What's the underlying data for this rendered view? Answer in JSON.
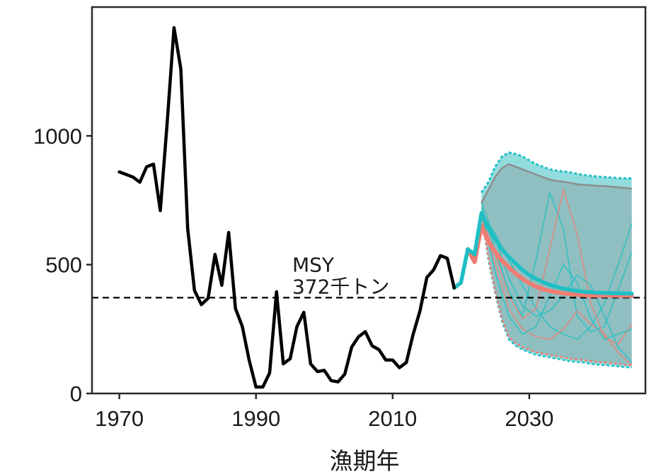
{
  "chart_data": {
    "type": "line",
    "title": "",
    "xlabel": "漁期年",
    "ylabel": "",
    "xlim": [
      1966,
      2047
    ],
    "ylim": [
      0,
      1500
    ],
    "xticks": [
      1970,
      1990,
      2010,
      2030
    ],
    "yticks": [
      0,
      500,
      1000
    ],
    "grid": false,
    "legend": "none",
    "colors": {
      "history": "#000000",
      "red_scenario": "#f07c74",
      "teal_scenario": "#1fbfc4",
      "band_fill": "#39c0c2",
      "band_fill_inner": "#8a8a8a",
      "msy_line": "#000000"
    },
    "annotations": [
      {
        "lines": [
          "MSY",
          "372千トン"
        ],
        "x": 1995,
        "y": 440
      }
    ],
    "reference_line": {
      "y": 372,
      "style": "dashed"
    },
    "series": [
      {
        "role": "history",
        "x": [
          1970,
          1971,
          1972,
          1973,
          1974,
          1975,
          1976,
          1977,
          1978,
          1979,
          1980,
          1981,
          1982,
          1983,
          1984,
          1985,
          1986,
          1987,
          1988,
          1989,
          1990,
          1991,
          1992,
          1993,
          1994,
          1995,
          1996,
          1997,
          1998,
          1999,
          2000,
          2001,
          2002,
          2003,
          2004,
          2005,
          2006,
          2007,
          2008,
          2009,
          2010,
          2011,
          2012,
          2013,
          2014,
          2015,
          2016,
          2017,
          2018,
          2019
        ],
        "values": [
          860,
          850,
          840,
          820,
          880,
          890,
          710,
          1050,
          1420,
          1260,
          640,
          400,
          345,
          370,
          540,
          420,
          625,
          330,
          260,
          130,
          25,
          25,
          80,
          395,
          115,
          135,
          260,
          315,
          115,
          85,
          90,
          50,
          45,
          75,
          180,
          220,
          240,
          185,
          170,
          130,
          130,
          100,
          120,
          230,
          320,
          450,
          480,
          535,
          525,
          410
        ]
      },
      {
        "role": "teal_median",
        "x": [
          2019,
          2020,
          2021,
          2022,
          2023,
          2024,
          2025,
          2026,
          2027,
          2028,
          2029,
          2030,
          2031,
          2032,
          2033,
          2034,
          2035,
          2036,
          2037,
          2038,
          2039,
          2040,
          2041,
          2042,
          2043,
          2044,
          2045
        ],
        "values": [
          410,
          430,
          560,
          540,
          700,
          640,
          600,
          560,
          530,
          505,
          480,
          460,
          445,
          432,
          422,
          414,
          407,
          402,
          398,
          395,
          393,
          391,
          390,
          389,
          389,
          388,
          388
        ]
      },
      {
        "role": "red_median",
        "x": [
          2021,
          2022,
          2023,
          2024,
          2025,
          2026,
          2027,
          2028,
          2029,
          2030,
          2031,
          2032,
          2033,
          2034,
          2035,
          2036,
          2037,
          2038,
          2039,
          2040,
          2041,
          2042,
          2043,
          2044,
          2045
        ],
        "values": [
          560,
          510,
          650,
          590,
          550,
          515,
          490,
          465,
          445,
          428,
          415,
          405,
          398,
          393,
          389,
          386,
          384,
          382,
          381,
          380,
          380,
          380,
          380,
          380,
          380
        ]
      }
    ],
    "bands": [
      {
        "role": "teal_band",
        "x": [
          2023,
          2024,
          2025,
          2026,
          2027,
          2028,
          2029,
          2030,
          2031,
          2032,
          2033,
          2034,
          2035,
          2036,
          2037,
          2038,
          2039,
          2040,
          2041,
          2042,
          2043,
          2044,
          2045
        ],
        "upper": [
          780,
          820,
          880,
          920,
          935,
          930,
          920,
          905,
          890,
          880,
          870,
          865,
          862,
          858,
          852,
          848,
          845,
          842,
          840,
          838,
          836,
          835,
          835
        ],
        "lower": [
          700,
          520,
          390,
          280,
          210,
          185,
          170,
          160,
          150,
          145,
          140,
          135,
          130,
          125,
          122,
          120,
          115,
          112,
          110,
          108,
          105,
          102,
          100
        ]
      },
      {
        "role": "grey_band",
        "x": [
          2023,
          2024,
          2025,
          2026,
          2027,
          2028,
          2029,
          2030,
          2031,
          2032,
          2033,
          2034,
          2035,
          2036,
          2037,
          2038,
          2039,
          2040,
          2041,
          2042,
          2043,
          2044,
          2045
        ],
        "upper": [
          740,
          790,
          840,
          875,
          890,
          880,
          870,
          860,
          850,
          840,
          830,
          825,
          822,
          818,
          812,
          810,
          808,
          806,
          805,
          803,
          800,
          798,
          795
        ],
        "lower": [
          700,
          530,
          400,
          290,
          220,
          195,
          180,
          170,
          160,
          155,
          150,
          145,
          140,
          135,
          132,
          130,
          125,
          122,
          120,
          118,
          115,
          112,
          110
        ]
      }
    ],
    "trajectories": [
      {
        "color": "teal",
        "x": [
          2023,
          2025,
          2027,
          2029,
          2031,
          2033,
          2035,
          2037,
          2039,
          2041,
          2043,
          2045
        ],
        "values": [
          720,
          560,
          400,
          300,
          520,
          780,
          640,
          300,
          240,
          260,
          400,
          550
        ]
      },
      {
        "color": "teal",
        "x": [
          2023,
          2025,
          2027,
          2029,
          2031,
          2033,
          2035,
          2037,
          2039,
          2041,
          2043,
          2045
        ],
        "values": [
          700,
          620,
          520,
          420,
          330,
          260,
          230,
          210,
          260,
          350,
          500,
          660
        ]
      },
      {
        "color": "red",
        "x": [
          2023,
          2025,
          2027,
          2029,
          2031,
          2033,
          2035,
          2037,
          2039,
          2041,
          2043,
          2045
        ],
        "values": [
          690,
          540,
          380,
          290,
          330,
          560,
          790,
          620,
          350,
          220,
          190,
          270
        ]
      },
      {
        "color": "teal",
        "x": [
          2023,
          2025,
          2027,
          2029,
          2031,
          2033,
          2035,
          2037,
          2039,
          2041,
          2043,
          2045
        ],
        "values": [
          740,
          600,
          450,
          340,
          300,
          320,
          380,
          460,
          420,
          300,
          180,
          120
        ]
      },
      {
        "color": "red",
        "x": [
          2023,
          2025,
          2027,
          2029,
          2031,
          2033,
          2035,
          2037,
          2039,
          2041,
          2043,
          2045
        ],
        "values": [
          680,
          500,
          330,
          250,
          220,
          210,
          250,
          320,
          270,
          230,
          160,
          110
        ]
      },
      {
        "color": "teal",
        "x": [
          2023,
          2025,
          2027,
          2029,
          2031,
          2033,
          2035,
          2037,
          2039,
          2041,
          2043,
          2045
        ],
        "values": [
          710,
          470,
          300,
          230,
          260,
          380,
          500,
          430,
          290,
          210,
          230,
          250
        ]
      }
    ]
  }
}
